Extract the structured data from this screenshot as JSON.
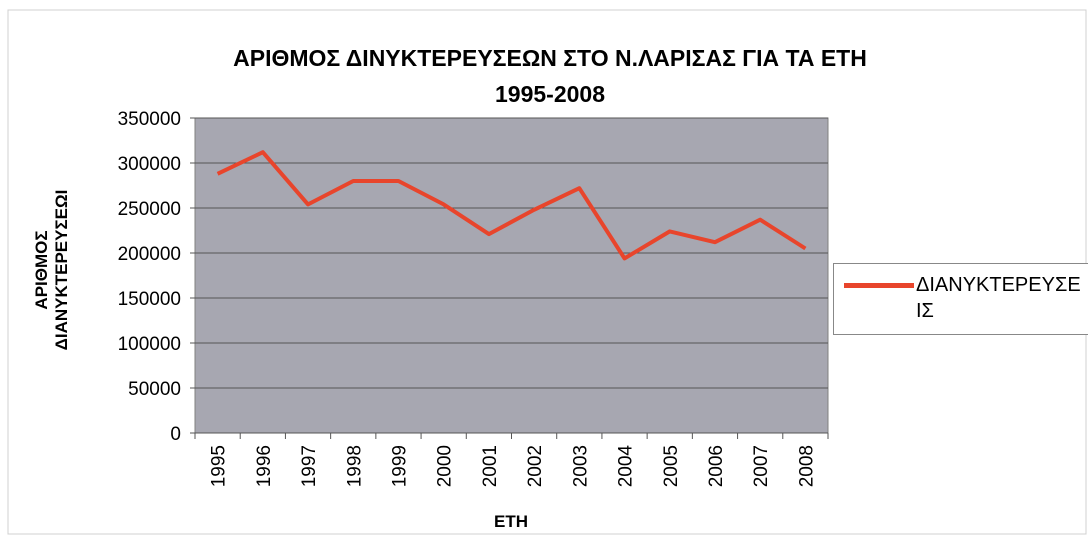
{
  "chart_data": {
    "type": "line",
    "title": "ΑΡΙΘΜΟΣ ΔΙΝΥΚΤΕΡΕΥΣΕΩΝ ΣΤΟ Ν.ΛΑΡΙΣΑΣ ΓΙΑ ΤΑ   ΕΤΗ\n1995-2008",
    "y_label": "ΑΡΙΘΜΟΣ\nΔΙΑΝΥΚΤΕΡΕΥΣΕΩΙ",
    "x_label": "ΕΤΗ",
    "categories": [
      "1995",
      "1996",
      "1997",
      "1998",
      "1999",
      "2000",
      "2001",
      "2002",
      "2003",
      "2004",
      "2005",
      "2006",
      "2007",
      "2008"
    ],
    "series": [
      {
        "name": "ΔΙΑΝΥΚΤΕΡΕΥΣΕΙΣ",
        "color": "#e8452c",
        "values": [
          288000,
          312000,
          254000,
          280000,
          280000,
          254000,
          221000,
          248000,
          272000,
          194000,
          224000,
          212000,
          237000,
          205000
        ]
      }
    ],
    "ylim": [
      0,
      350000
    ],
    "yticks": [
      0,
      50000,
      100000,
      150000,
      200000,
      250000,
      300000,
      350000
    ],
    "grid": true,
    "legend": "right",
    "plot_background": "#a7a7b1"
  }
}
